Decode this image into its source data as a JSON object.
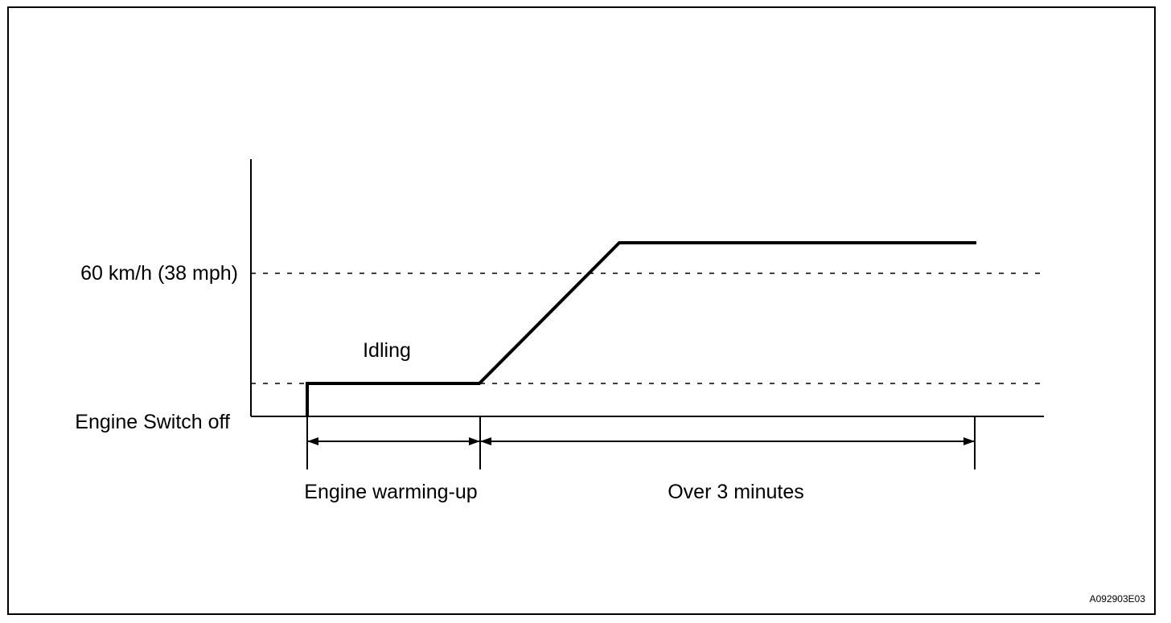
{
  "labels": {
    "speed_60": "60 km/h (38 mph)",
    "engine_switch_off": "Engine Switch off",
    "idling": "Idling",
    "engine_warming_up": "Engine warming-up",
    "over_3_minutes": "Over 3 minutes",
    "figure_code": "A092903E03"
  },
  "colors": {
    "line": "#000000",
    "background": "#ffffff"
  }
}
